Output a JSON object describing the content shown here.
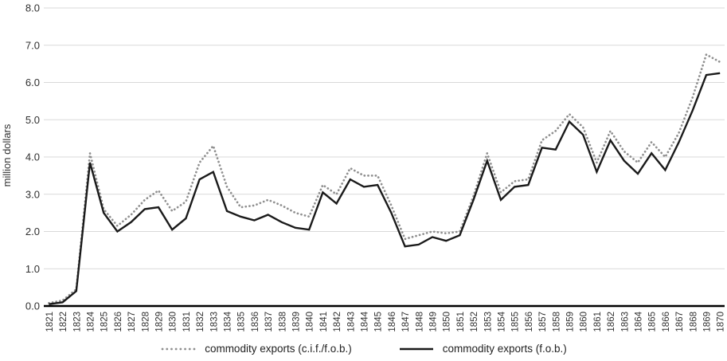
{
  "y_axis": {
    "title": "million dollars",
    "tick_labels": [
      "0.0",
      "1.0",
      "2.0",
      "3.0",
      "4.0",
      "5.0",
      "6.0",
      "7.0",
      "8.0"
    ]
  },
  "x_axis": {
    "years": [
      "1821",
      "1822",
      "1823",
      "1824",
      "1825",
      "1826",
      "1827",
      "1828",
      "1829",
      "1830",
      "1831",
      "1832",
      "1833",
      "1834",
      "1835",
      "1836",
      "1837",
      "1838",
      "1839",
      "1840",
      "1841",
      "1842",
      "1843",
      "1844",
      "1845",
      "1846",
      "1847",
      "1848",
      "1849",
      "1850",
      "1851",
      "1852",
      "1853",
      "1854",
      "1855",
      "1856",
      "1857",
      "1858",
      "1859",
      "1860",
      "1861",
      "1862",
      "1863",
      "1864",
      "1865",
      "1866",
      "1867",
      "1868",
      "1869",
      "1870"
    ]
  },
  "legend": {
    "items": [
      {
        "label": "commodity exports (c.i.f./f.o.b.)",
        "style": "dotted",
        "color": "#8f8f8f"
      },
      {
        "label": "commodity exports (f.o.b.)",
        "style": "solid",
        "color": "#1a1a1a"
      }
    ]
  },
  "colors": {
    "gridline": "#d9d9d9",
    "axis": "#000000",
    "tick_text": "#303030",
    "dotted_series": "#8f8f8f",
    "solid_series": "#1a1a1a"
  },
  "chart_data": {
    "type": "line",
    "title": "",
    "xlabel": "",
    "ylabel": "million dollars",
    "ylim": [
      0,
      8
    ],
    "ytick_step": 1.0,
    "grid": true,
    "legend_position": "bottom-center",
    "x": [
      1821,
      1822,
      1823,
      1824,
      1825,
      1826,
      1827,
      1828,
      1829,
      1830,
      1831,
      1832,
      1833,
      1834,
      1835,
      1836,
      1837,
      1838,
      1839,
      1840,
      1841,
      1842,
      1843,
      1844,
      1845,
      1846,
      1847,
      1848,
      1849,
      1850,
      1851,
      1852,
      1853,
      1854,
      1855,
      1856,
      1857,
      1858,
      1859,
      1860,
      1861,
      1862,
      1863,
      1864,
      1865,
      1866,
      1867,
      1868,
      1869,
      1870
    ],
    "series": [
      {
        "name": "commodity exports (c.i.f./f.o.b.)",
        "style": "dotted",
        "color": "#8f8f8f",
        "values": [
          0.08,
          0.15,
          0.45,
          4.1,
          2.6,
          2.15,
          2.45,
          2.85,
          3.1,
          2.55,
          2.8,
          3.85,
          4.3,
          3.2,
          2.65,
          2.7,
          2.85,
          2.7,
          2.5,
          2.4,
          3.25,
          3.0,
          3.7,
          3.5,
          3.5,
          2.7,
          1.8,
          1.9,
          2.0,
          1.95,
          2.0,
          2.95,
          4.1,
          3.05,
          3.35,
          3.4,
          4.45,
          4.7,
          5.15,
          4.8,
          3.85,
          4.7,
          4.15,
          3.85,
          4.4,
          4.0,
          4.65,
          5.6,
          6.75,
          6.55
        ]
      },
      {
        "name": "commodity exports (f.o.b.)",
        "style": "solid",
        "color": "#1a1a1a",
        "values": [
          0.05,
          0.1,
          0.4,
          3.85,
          2.5,
          2.0,
          2.25,
          2.6,
          2.65,
          2.05,
          2.35,
          3.4,
          3.6,
          2.55,
          2.4,
          2.3,
          2.45,
          2.25,
          2.1,
          2.05,
          3.05,
          2.75,
          3.4,
          3.2,
          3.25,
          2.5,
          1.6,
          1.65,
          1.85,
          1.75,
          1.9,
          2.85,
          3.9,
          2.85,
          3.2,
          3.25,
          4.25,
          4.2,
          4.95,
          4.6,
          3.6,
          4.45,
          3.9,
          3.55,
          4.1,
          3.65,
          4.4,
          5.25,
          6.2,
          6.25
        ]
      }
    ]
  }
}
